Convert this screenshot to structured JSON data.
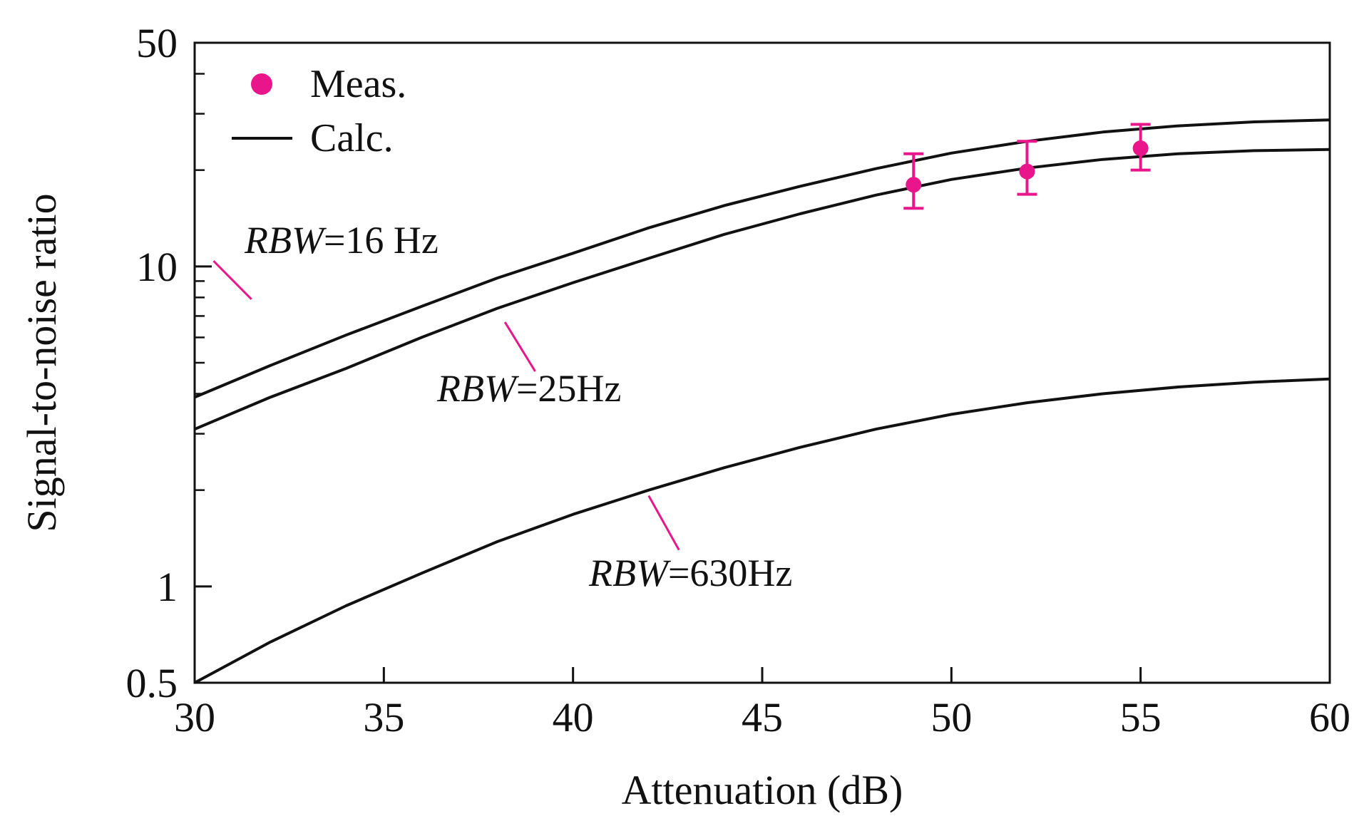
{
  "chart_data": {
    "type": "line",
    "xlabel": "Attenuation  (dB)",
    "ylabel": "Signal-to-noise ratio",
    "xlim": [
      30,
      60
    ],
    "ylim": [
      0.5,
      50
    ],
    "yscale": "log",
    "xticks": [
      30,
      35,
      40,
      45,
      50,
      55,
      60
    ],
    "xtick_labels": [
      "30",
      "35",
      "40",
      "45",
      "50",
      "55",
      "60"
    ],
    "yticks_labeled": [
      0.5,
      1,
      10,
      50
    ],
    "ytick_labels": [
      "0.5",
      "1",
      "10",
      "50"
    ],
    "yticks_minor": [
      2,
      3,
      4,
      5,
      6,
      7,
      8,
      9,
      20,
      30,
      40
    ],
    "grid": false,
    "legend": {
      "position": "top-left",
      "entries": [
        {
          "label": "Meas.",
          "marker": "circle",
          "color": "#e8168a"
        },
        {
          "label": "Calc.",
          "marker": "line",
          "color": "#111111"
        }
      ]
    },
    "series": [
      {
        "kind": "calc",
        "color": "#111111",
        "x": [
          30,
          32,
          34,
          36,
          38,
          40,
          42,
          44,
          46,
          48,
          50,
          52,
          54,
          56,
          58,
          60
        ],
        "y": [
          3.9,
          4.9,
          6.1,
          7.5,
          9.2,
          11.0,
          13.2,
          15.5,
          17.8,
          20.2,
          22.6,
          24.6,
          26.3,
          27.5,
          28.3,
          28.7
        ]
      },
      {
        "kind": "calc",
        "color": "#111111",
        "x": [
          30,
          32,
          34,
          36,
          38,
          40,
          42,
          44,
          46,
          48,
          50,
          52,
          54,
          56,
          58,
          60
        ],
        "y": [
          3.1,
          3.9,
          4.8,
          6.0,
          7.4,
          8.9,
          10.6,
          12.6,
          14.6,
          16.7,
          18.7,
          20.3,
          21.6,
          22.5,
          23.0,
          23.2
        ]
      },
      {
        "kind": "calc",
        "color": "#111111",
        "x": [
          30,
          32,
          34,
          36,
          38,
          40,
          42,
          44,
          46,
          48,
          50,
          52,
          54,
          56,
          58,
          60
        ],
        "y": [
          0.5,
          0.67,
          0.87,
          1.1,
          1.38,
          1.68,
          2.0,
          2.35,
          2.72,
          3.1,
          3.45,
          3.75,
          4.0,
          4.2,
          4.35,
          4.45
        ]
      },
      {
        "kind": "meas",
        "color": "#e8168a",
        "x": [
          49,
          52,
          55
        ],
        "y": [
          18.0,
          19.8,
          23.4
        ],
        "y_low": [
          15.2,
          16.8,
          20.0
        ],
        "y_high": [
          22.5,
          24.6,
          27.8
        ]
      }
    ],
    "annotations": [
      {
        "prefix": "RBW",
        "text": "=16 Hz",
        "leader_from": [
          31.5,
          7.9
        ],
        "leader_to": [
          30.5,
          10.4
        ]
      },
      {
        "prefix": "RBW",
        "text": "=25Hz",
        "leader_from": [
          38.2,
          6.7
        ],
        "leader_to": [
          39.0,
          4.7
        ]
      },
      {
        "prefix": "RBW",
        "text": "=630Hz",
        "leader_from": [
          42.0,
          1.92
        ],
        "leader_to": [
          42.8,
          1.3
        ]
      }
    ]
  }
}
